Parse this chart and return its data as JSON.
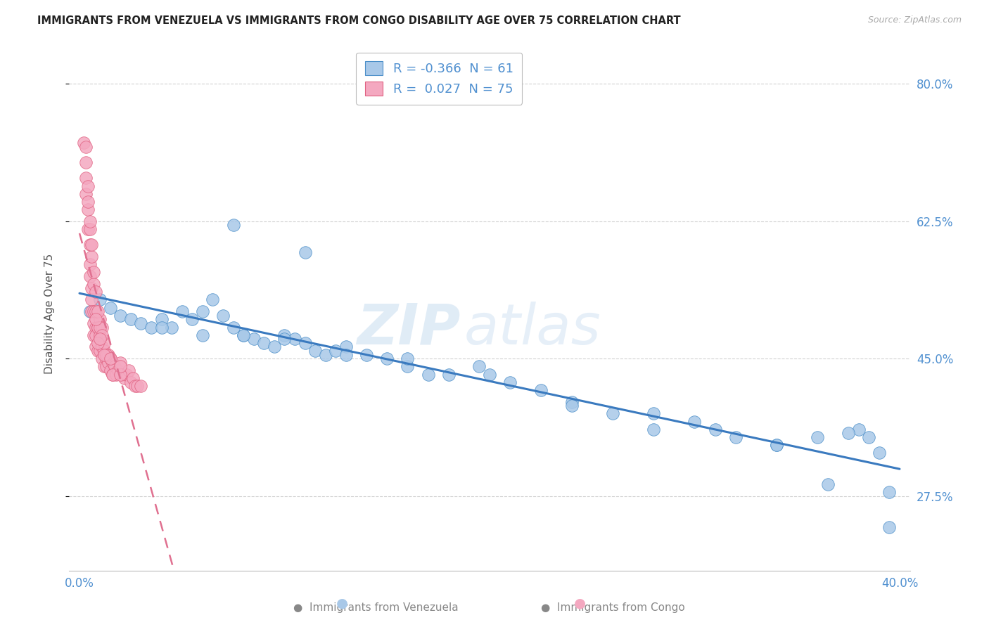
{
  "title": "IMMIGRANTS FROM VENEZUELA VS IMMIGRANTS FROM CONGO DISABILITY AGE OVER 75 CORRELATION CHART",
  "source": "Source: ZipAtlas.com",
  "ylabel": "Disability Age Over 75",
  "xlim": [
    -0.005,
    0.405
  ],
  "ylim": [
    0.18,
    0.835
  ],
  "yticks": [
    0.275,
    0.45,
    0.625,
    0.8
  ],
  "ytick_labels": [
    "27.5%",
    "45.0%",
    "62.5%",
    "80.0%"
  ],
  "xticks": [
    0.0,
    0.1,
    0.2,
    0.3,
    0.4
  ],
  "xtick_labels": [
    "0.0%",
    "",
    "",
    "",
    "40.0%"
  ],
  "venezuela_R": -0.366,
  "venezuela_N": 61,
  "congo_R": 0.027,
  "congo_N": 75,
  "venezuela_color": "#a8c8e8",
  "congo_color": "#f4a8c0",
  "venezuela_edge_color": "#4a8ec8",
  "congo_edge_color": "#e06080",
  "venezuela_line_color": "#3a7abf",
  "congo_line_color": "#e07090",
  "tick_color": "#5090d0",
  "background_color": "#ffffff",
  "grid_color": "#cccccc",
  "venezuela_x": [
    0.005,
    0.01,
    0.015,
    0.02,
    0.025,
    0.03,
    0.035,
    0.04,
    0.045,
    0.05,
    0.055,
    0.06,
    0.065,
    0.07,
    0.075,
    0.08,
    0.085,
    0.09,
    0.095,
    0.1,
    0.105,
    0.11,
    0.115,
    0.12,
    0.125,
    0.13,
    0.14,
    0.15,
    0.16,
    0.17,
    0.18,
    0.195,
    0.21,
    0.225,
    0.24,
    0.26,
    0.28,
    0.3,
    0.32,
    0.34,
    0.36,
    0.38,
    0.39,
    0.395,
    0.04,
    0.06,
    0.08,
    0.1,
    0.13,
    0.16,
    0.2,
    0.24,
    0.28,
    0.31,
    0.34,
    0.365,
    0.375,
    0.385,
    0.395,
    0.075,
    0.11
  ],
  "venezuela_y": [
    0.51,
    0.525,
    0.515,
    0.505,
    0.5,
    0.495,
    0.49,
    0.5,
    0.49,
    0.51,
    0.5,
    0.51,
    0.525,
    0.505,
    0.49,
    0.48,
    0.475,
    0.47,
    0.465,
    0.48,
    0.475,
    0.47,
    0.46,
    0.455,
    0.46,
    0.465,
    0.455,
    0.45,
    0.44,
    0.43,
    0.43,
    0.44,
    0.42,
    0.41,
    0.395,
    0.38,
    0.38,
    0.37,
    0.35,
    0.34,
    0.35,
    0.36,
    0.33,
    0.28,
    0.49,
    0.48,
    0.48,
    0.475,
    0.455,
    0.45,
    0.43,
    0.39,
    0.36,
    0.36,
    0.34,
    0.29,
    0.355,
    0.35,
    0.235,
    0.62,
    0.585
  ],
  "congo_x": [
    0.002,
    0.003,
    0.003,
    0.004,
    0.004,
    0.005,
    0.005,
    0.005,
    0.006,
    0.006,
    0.006,
    0.007,
    0.007,
    0.007,
    0.008,
    0.008,
    0.008,
    0.009,
    0.009,
    0.01,
    0.01,
    0.01,
    0.011,
    0.011,
    0.012,
    0.012,
    0.013,
    0.013,
    0.014,
    0.014,
    0.015,
    0.015,
    0.016,
    0.016,
    0.017,
    0.018,
    0.019,
    0.02,
    0.021,
    0.022,
    0.023,
    0.024,
    0.025,
    0.026,
    0.027,
    0.028,
    0.03,
    0.003,
    0.004,
    0.005,
    0.006,
    0.007,
    0.008,
    0.009,
    0.01,
    0.011,
    0.012,
    0.013,
    0.003,
    0.004,
    0.005,
    0.006,
    0.007,
    0.008,
    0.009,
    0.01,
    0.011,
    0.016,
    0.02,
    0.008,
    0.009,
    0.01,
    0.012,
    0.015,
    0.02
  ],
  "congo_y": [
    0.725,
    0.68,
    0.66,
    0.64,
    0.615,
    0.595,
    0.57,
    0.555,
    0.54,
    0.525,
    0.51,
    0.51,
    0.495,
    0.48,
    0.49,
    0.48,
    0.465,
    0.49,
    0.46,
    0.5,
    0.475,
    0.46,
    0.465,
    0.45,
    0.46,
    0.44,
    0.45,
    0.44,
    0.455,
    0.445,
    0.45,
    0.435,
    0.445,
    0.43,
    0.44,
    0.43,
    0.435,
    0.445,
    0.43,
    0.425,
    0.43,
    0.435,
    0.42,
    0.425,
    0.415,
    0.415,
    0.415,
    0.7,
    0.65,
    0.615,
    0.58,
    0.545,
    0.51,
    0.49,
    0.48,
    0.49,
    0.47,
    0.455,
    0.72,
    0.67,
    0.625,
    0.595,
    0.56,
    0.535,
    0.51,
    0.49,
    0.48,
    0.43,
    0.43,
    0.5,
    0.47,
    0.475,
    0.455,
    0.45,
    0.44
  ],
  "watermark_zip": "ZIP",
  "watermark_atlas": "atlas",
  "legend_label_ven": "R = -0.366  N = 61",
  "legend_label_con": "R =  0.027  N = 75",
  "bottom_label_ven": "Immigrants from Venezuela",
  "bottom_label_con": "Immigrants from Congo"
}
